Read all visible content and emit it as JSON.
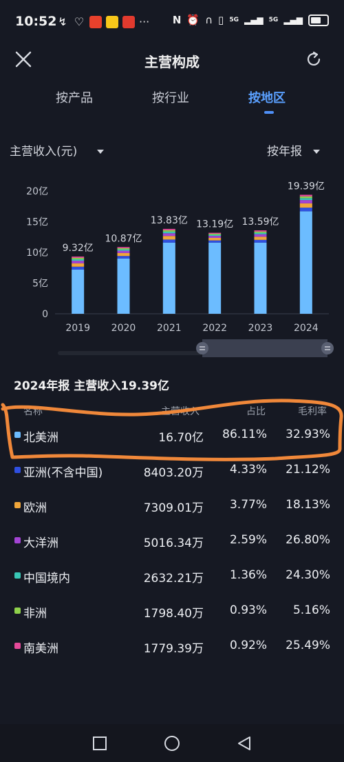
{
  "status_bar": {
    "time": "10:52",
    "left_icons": [
      "notification-icon",
      "app-icon-1",
      "app-icon-2",
      "app-icon-3",
      "app-icon-4",
      "more-icon"
    ],
    "network_labels": [
      "5G",
      "5G"
    ]
  },
  "header": {
    "title": "主营构成"
  },
  "tabs": [
    {
      "label": "按产品",
      "active": false
    },
    {
      "label": "按行业",
      "active": false
    },
    {
      "label": "按地区",
      "active": true
    }
  ],
  "filters": {
    "metric": "主营收入(元)",
    "period": "按年报"
  },
  "chart_data": {
    "type": "bar",
    "stacked": true,
    "categories": [
      "2019",
      "2020",
      "2021",
      "2022",
      "2023",
      "2024"
    ],
    "totals_label": [
      "9.32亿",
      "10.87亿",
      "13.83亿",
      "13.19亿",
      "13.59亿",
      "19.39亿"
    ],
    "totals": [
      9.32,
      10.87,
      13.83,
      13.19,
      13.59,
      19.39
    ],
    "main_segment": [
      7.2,
      9.0,
      11.6,
      11.6,
      11.6,
      16.7
    ],
    "yticks": [
      "0",
      "5亿",
      "10亿",
      "15亿",
      "20亿"
    ],
    "ylim": [
      0,
      20
    ],
    "colors": [
      "#6cbcff",
      "#2f4fe0",
      "#f0a63a",
      "#a344d4",
      "#38c7b5",
      "#8fd14b",
      "#e64a9a"
    ]
  },
  "period_summary": {
    "label": "2024年报 主营收入19.39亿"
  },
  "table": {
    "headers": {
      "name": "名称",
      "revenue": "主营收入",
      "share": "占比",
      "margin": "毛利率"
    },
    "rows": [
      {
        "name": "北美洲",
        "color": "#6cbcff",
        "revenue": "16.70亿",
        "share": "86.11%",
        "margin": "32.93%"
      },
      {
        "name": "亚洲(不含中国)",
        "color": "#2f4fe0",
        "revenue": "8403.20万",
        "share": "4.33%",
        "margin": "21.12%"
      },
      {
        "name": "欧洲",
        "color": "#f0a63a",
        "revenue": "7309.01万",
        "share": "3.77%",
        "margin": "18.13%"
      },
      {
        "name": "大洋洲",
        "color": "#a344d4",
        "revenue": "5016.34万",
        "share": "2.59%",
        "margin": "26.80%"
      },
      {
        "name": "中国境内",
        "color": "#38c7b5",
        "revenue": "2632.21万",
        "share": "1.36%",
        "margin": "24.30%"
      },
      {
        "name": "非洲",
        "color": "#8fd14b",
        "revenue": "1798.40万",
        "share": "0.93%",
        "margin": "5.16%"
      },
      {
        "name": "南美洲",
        "color": "#e64a9a",
        "revenue": "1779.39万",
        "share": "0.92%",
        "margin": "25.49%"
      }
    ]
  },
  "annotation_color": "#f0883a"
}
